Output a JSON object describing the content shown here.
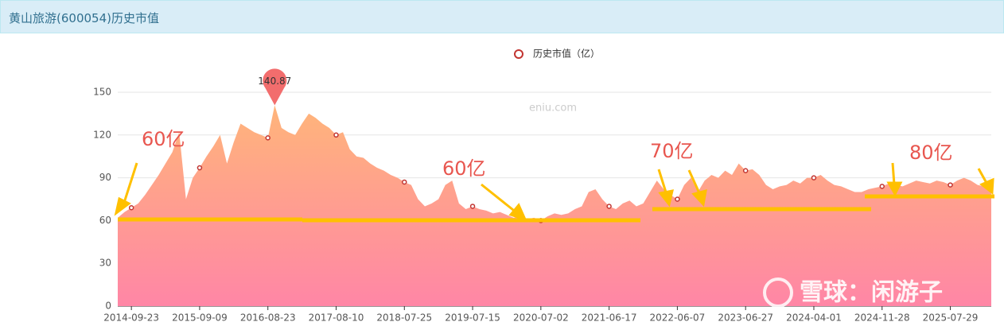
{
  "header": {
    "title": "黄山旅游(600054)历史市值"
  },
  "chart_data": {
    "type": "area",
    "legend": "历史市值（亿）",
    "watermark": "eniu.com",
    "annotations": [
      "60亿",
      "60亿",
      "70亿",
      "80亿",
      "雪球：闲游子"
    ],
    "categories": [
      null,
      null,
      "2014-09-23",
      null,
      null,
      null,
      null,
      null,
      null,
      null,
      null,
      null,
      "2015-09-09",
      null,
      null,
      null,
      null,
      null,
      null,
      null,
      null,
      null,
      "2016-08-23",
      null,
      null,
      null,
      null,
      null,
      null,
      null,
      null,
      null,
      "2017-08-10",
      null,
      null,
      null,
      null,
      null,
      null,
      null,
      null,
      null,
      "2018-07-25",
      null,
      null,
      null,
      null,
      null,
      null,
      null,
      null,
      null,
      "2019-07-15",
      null,
      null,
      null,
      null,
      null,
      null,
      null,
      null,
      null,
      "2020-07-02",
      null,
      null,
      null,
      null,
      null,
      null,
      null,
      null,
      null,
      "2021-06-17",
      null,
      null,
      null,
      null,
      null,
      null,
      null,
      null,
      null,
      "2022-06-07",
      null,
      null,
      null,
      null,
      null,
      null,
      null,
      null,
      null,
      "2023-06-27",
      null,
      null,
      null,
      null,
      null,
      null,
      null,
      null,
      null,
      "2024-04-01",
      null,
      null,
      null,
      null,
      null,
      null,
      null,
      null,
      null,
      "2024-11-28",
      null,
      null,
      null,
      null,
      null,
      null,
      null,
      null,
      null,
      "2025-07-29",
      null,
      null,
      null,
      null,
      null,
      null
    ],
    "series": [
      {
        "name": "历史市值（亿）",
        "color": "#c23531",
        "values": [
          62,
          66,
          69,
          72,
          78,
          85,
          92,
          100,
          108,
          122,
          75,
          90,
          97,
          105,
          112,
          120,
          100,
          115,
          128,
          125,
          122,
          120,
          118,
          140.87,
          125,
          122,
          120,
          128,
          135,
          132,
          128,
          125,
          120,
          122,
          110,
          105,
          104,
          100,
          97,
          95,
          92,
          90,
          87,
          85,
          75,
          70,
          72,
          75,
          85,
          88,
          72,
          68,
          70,
          68,
          67,
          65,
          66,
          64,
          62,
          63,
          61,
          62,
          60,
          63,
          65,
          64,
          65,
          68,
          70,
          80,
          82,
          75,
          70,
          68,
          72,
          74,
          70,
          72,
          80,
          88,
          82,
          78,
          75,
          85,
          90,
          80,
          88,
          92,
          90,
          95,
          92,
          100,
          95,
          96,
          92,
          85,
          82,
          84,
          85,
          88,
          86,
          90,
          90,
          92,
          88,
          85,
          84,
          82,
          80,
          80,
          82,
          83,
          84,
          86,
          85,
          84,
          86,
          88,
          87,
          86,
          88,
          87,
          85,
          88,
          90,
          88,
          85,
          84,
          83
        ]
      }
    ],
    "ylim": [
      0,
      150
    ],
    "yticks": [
      0,
      30,
      60,
      90,
      120,
      150
    ],
    "grid": true
  }
}
